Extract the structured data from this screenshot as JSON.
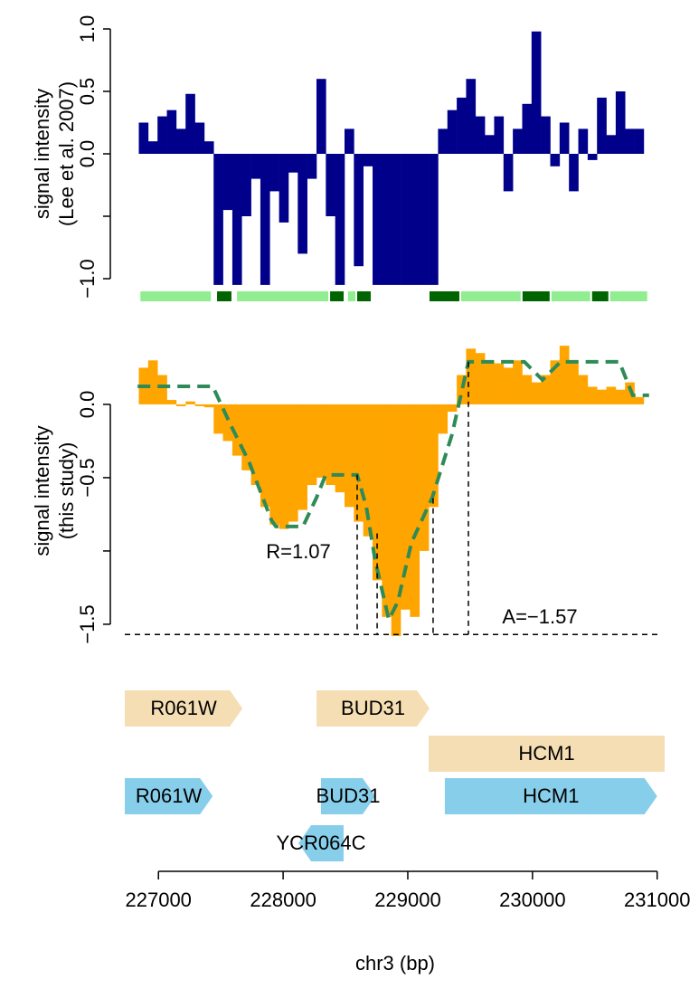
{
  "chart_data": [
    {
      "type": "bar",
      "ylabel": [
        "signal intensity",
        "(Lee et al. 2007)"
      ],
      "xlim": [
        226730,
        231060
      ],
      "ylim": [
        -1.1,
        1.1
      ],
      "yticks": [
        {
          "value": -1,
          "label": "−1.0"
        },
        {
          "value": -0.5,
          "label": null
        },
        {
          "value": 0,
          "label": "0.0"
        },
        0.5,
        {
          "value": 1,
          "label": "1.0"
        }
      ],
      "color": "#00008B",
      "x": [
        226880,
        226955,
        227030,
        227105,
        227180,
        227255,
        227330,
        227405,
        227480,
        227555,
        227630,
        227705,
        227780,
        227855,
        227930,
        228005,
        228080,
        228155,
        228230,
        228305,
        228380,
        228455,
        228530,
        228605,
        228680,
        228755,
        228830,
        228905,
        228980,
        229055,
        229130,
        229205,
        229280,
        229355,
        229430,
        229505,
        229580,
        229655,
        229730,
        229805,
        229880,
        229955,
        230030,
        230105,
        230180,
        230255,
        230330,
        230405,
        230480,
        230555,
        230630,
        230705,
        230780,
        230855
      ],
      "values": [
        0.25,
        0.1,
        0.3,
        0.35,
        0.2,
        0.48,
        0.25,
        0.1,
        -1.05,
        -0.45,
        -1.05,
        -0.5,
        -0.2,
        -1.05,
        -0.3,
        -0.55,
        -0.15,
        -0.8,
        -0.2,
        0.6,
        -0.5,
        -1.05,
        0.2,
        -0.9,
        -0.1,
        -1.05,
        -1.05,
        -1.05,
        -1.05,
        -1.05,
        -1.05,
        -1.05,
        0.2,
        0.35,
        0.45,
        0.6,
        0.3,
        0.15,
        0.3,
        -0.3,
        0.2,
        0.4,
        0.98,
        0.3,
        -0.1,
        0.25,
        -0.3,
        0.2,
        -0.05,
        0.45,
        0.15,
        0.5,
        0.2,
        0.2
      ],
      "segments": [
        {
          "start": 226855,
          "end": 227435,
          "color": "#90EE90"
        },
        {
          "start": 227470,
          "end": 227600,
          "color": "#006400"
        },
        {
          "start": 227630,
          "end": 228377,
          "color": "#90EE90"
        },
        {
          "start": 228377,
          "end": 228500,
          "color": "#006400"
        },
        {
          "start": 228520,
          "end": 228594,
          "color": "#90EE90"
        },
        {
          "start": 228594,
          "end": 228717,
          "color": "#006400"
        },
        {
          "start": 229174,
          "end": 229428,
          "color": "#006400"
        },
        {
          "start": 229428,
          "end": 229920,
          "color": "#90EE90"
        },
        {
          "start": 229920,
          "end": 230152,
          "color": "#006400"
        },
        {
          "start": 230152,
          "end": 230478,
          "color": "#90EE90"
        },
        {
          "start": 230478,
          "end": 230623,
          "color": "#006400"
        },
        {
          "start": 230623,
          "end": 230935,
          "color": "#90EE90"
        }
      ]
    },
    {
      "type": "area",
      "ylabel": [
        "signal intensity",
        "(this study)"
      ],
      "xlim": [
        226730,
        231060
      ],
      "ylim": [
        -1.63,
        0.45
      ],
      "yticks": [
        {
          "value": -1.5,
          "label": "−1.5"
        },
        {
          "value": -1,
          "label": null
        },
        {
          "value": -0.5,
          "label": "−0.5"
        },
        {
          "value": 0,
          "label": "0.0"
        }
      ],
      "x": [
        226880,
        226955,
        227030,
        227105,
        227180,
        227255,
        227330,
        227405,
        227480,
        227555,
        227630,
        227705,
        227780,
        227855,
        227930,
        228005,
        228080,
        228155,
        228230,
        228305,
        228380,
        228455,
        228530,
        228605,
        228680,
        228755,
        228830,
        228905,
        228980,
        229055,
        229130,
        229205,
        229280,
        229355,
        229430,
        229505,
        229580,
        229655,
        229730,
        229805,
        229880,
        229955,
        230030,
        230105,
        230180,
        230255,
        230330,
        230405,
        230480,
        230555,
        230630,
        230705,
        230780,
        230855
      ],
      "color": "#FFA500",
      "values": [
        0.25,
        0.3,
        0.2,
        0.03,
        0.0,
        0.02,
        0.0,
        -0.02,
        -0.2,
        -0.25,
        -0.35,
        -0.45,
        -0.55,
        -0.7,
        -0.82,
        -0.85,
        -0.8,
        -0.72,
        -0.55,
        -0.5,
        -0.55,
        -0.6,
        -0.7,
        -0.8,
        -0.9,
        -1.2,
        -1.45,
        -1.58,
        -1.4,
        -1.45,
        -1.0,
        -0.7,
        -0.2,
        -0.05,
        0.2,
        0.38,
        0.35,
        0.3,
        0.28,
        0.25,
        0.3,
        0.2,
        0.15,
        0.2,
        0.3,
        0.4,
        0.3,
        0.2,
        0.12,
        0.1,
        0.12,
        0.1,
        0.15,
        0.05
      ],
      "model": {
        "color": "#2E8B57",
        "x": [
          226833,
          227435,
          227580,
          227725,
          227906,
          227942,
          228159,
          228268,
          228341,
          228594,
          228667,
          228739,
          228848,
          228920,
          229029,
          229196,
          229355,
          229486,
          229935,
          230080,
          230225,
          230696,
          230804,
          230935
        ],
        "values": [
          0.123,
          0.123,
          -0.142,
          -0.389,
          -0.79,
          -0.833,
          -0.833,
          -0.636,
          -0.481,
          -0.481,
          -0.698,
          -1.068,
          -1.469,
          -1.346,
          -0.944,
          -0.636,
          -0.204,
          0.29,
          0.29,
          0.167,
          0.29,
          0.29,
          0.062,
          0.062
        ]
      },
      "hline": -1.57,
      "vlines": [
        {
          "x": 228594,
          "y": -0.48
        },
        {
          "x": 228754,
          "y": -0.88
        },
        {
          "x": 229203,
          "y": -0.64
        },
        {
          "x": 229486,
          "y": 0.29
        }
      ],
      "annotations": [
        "R=1.07",
        "A=−1.57"
      ]
    },
    {
      "type": "genes",
      "xlim": [
        226730,
        231060
      ],
      "xticks": [
        227000,
        228000,
        229000,
        230000,
        231000
      ],
      "xlabel": "chr3 (bp)",
      "tracks": [
        {
          "color": "#F5DEB3",
          "rows": [
            [
              {
                "name": "R061W",
                "start": 226400,
                "end": 227674,
                "strand": "+"
              },
              {
                "name": "BUD31",
                "start": 228268,
                "end": 229174,
                "strand": "+"
              }
            ],
            [
              {
                "name": "HCM1",
                "start": 229167,
                "end": 231400,
                "strand": "+"
              }
            ]
          ]
        },
        {
          "color": "#87CEEB",
          "rows": [
            [
              {
                "name": "R061W",
                "start": 226400,
                "end": 227435,
                "strand": "+"
              },
              {
                "name": "BUD31",
                "start": 228304,
                "end": 228739,
                "strand": "+"
              },
              {
                "name": "HCM1",
                "start": 229297,
                "end": 231000,
                "strand": "+"
              }
            ],
            [
              {
                "name": "YCR064C",
                "start": 228123,
                "end": 228485,
                "strand": "-"
              }
            ]
          ]
        }
      ]
    }
  ]
}
